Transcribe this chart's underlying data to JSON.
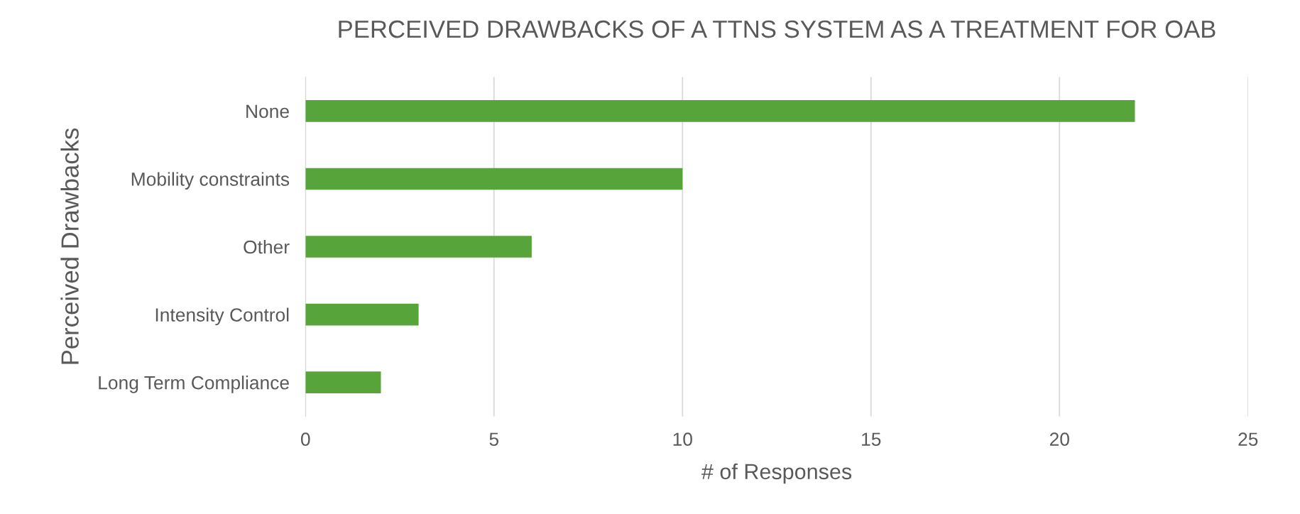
{
  "chart_data": {
    "type": "bar",
    "orientation": "horizontal",
    "title": "PERCEIVED DRAWBACKS OF A TTNS SYSTEM AS A TREATMENT FOR OAB",
    "xlabel": "# of Responses",
    "ylabel": "Perceived Drawbacks",
    "categories": [
      "None",
      "Mobility constraints",
      "Other",
      "Intensity Control",
      "Long Term Compliance"
    ],
    "values": [
      22,
      10,
      6,
      3,
      2
    ],
    "color": "#56a43a",
    "xlim": [
      0,
      25
    ],
    "xticks": [
      0,
      5,
      10,
      15,
      20,
      25
    ],
    "grid": "x"
  }
}
